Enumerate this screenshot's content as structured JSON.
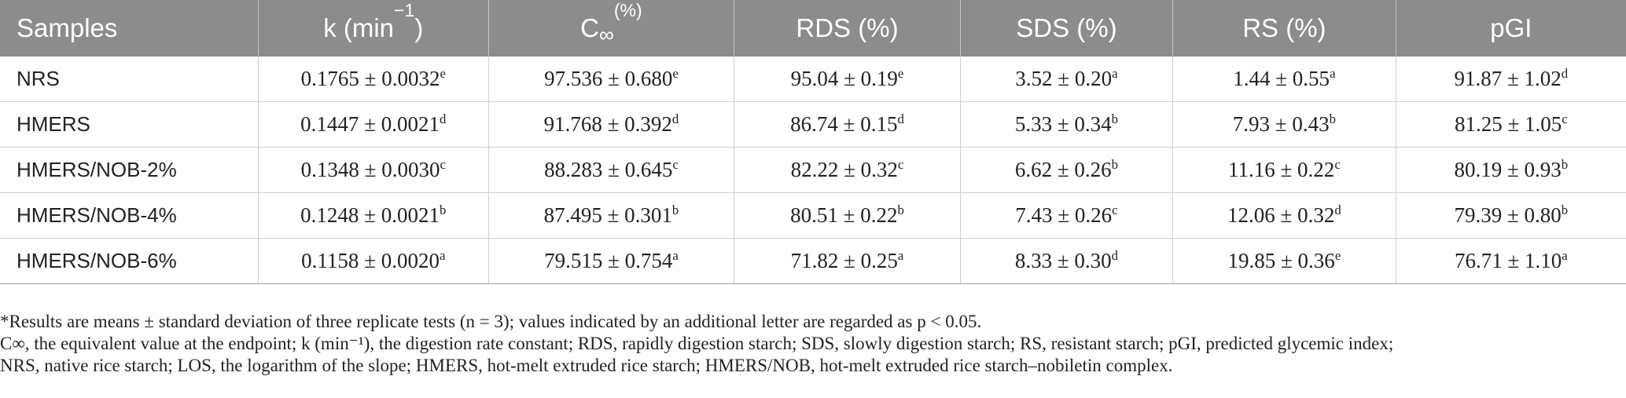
{
  "headers": [
    {
      "main": "Samples"
    },
    {
      "main": "k (min",
      "sup": "−1",
      "tail": ")"
    },
    {
      "main": "C",
      "sub": "∞",
      "sup": "(%)"
    },
    {
      "main": "RDS (%)"
    },
    {
      "main": "SDS (%)"
    },
    {
      "main": "RS (%)"
    },
    {
      "main": "pGI"
    }
  ],
  "rows": [
    {
      "sample": "NRS",
      "cells": [
        {
          "v": "0.1765 ± 0.0032",
          "s": "e"
        },
        {
          "v": "97.536 ± 0.680",
          "s": "e"
        },
        {
          "v": "95.04 ± 0.19",
          "s": "e"
        },
        {
          "v": "3.52 ± 0.20",
          "s": "a"
        },
        {
          "v": "1.44 ± 0.55",
          "s": "a"
        },
        {
          "v": "91.87 ± 1.02",
          "s": "d"
        }
      ]
    },
    {
      "sample": "HMERS",
      "cells": [
        {
          "v": "0.1447 ± 0.0021",
          "s": "d"
        },
        {
          "v": "91.768 ± 0.392",
          "s": "d"
        },
        {
          "v": "86.74 ± 0.15",
          "s": "d"
        },
        {
          "v": "5.33 ± 0.34",
          "s": "b"
        },
        {
          "v": "7.93 ± 0.43",
          "s": "b"
        },
        {
          "v": "81.25 ± 1.05",
          "s": "c"
        }
      ]
    },
    {
      "sample": "HMERS/NOB-2%",
      "cells": [
        {
          "v": "0.1348 ± 0.0030",
          "s": "c"
        },
        {
          "v": "88.283 ± 0.645",
          "s": "c"
        },
        {
          "v": "82.22 ± 0.32",
          "s": "c"
        },
        {
          "v": "6.62 ± 0.26",
          "s": "b"
        },
        {
          "v": "11.16 ± 0.22",
          "s": "c"
        },
        {
          "v": "80.19 ± 0.93",
          "s": "b"
        }
      ]
    },
    {
      "sample": "HMERS/NOB-4%",
      "cells": [
        {
          "v": "0.1248 ± 0.0021",
          "s": "b"
        },
        {
          "v": "87.495 ± 0.301",
          "s": "b"
        },
        {
          "v": "80.51 ± 0.22",
          "s": "b"
        },
        {
          "v": "7.43 ± 0.26",
          "s": "c"
        },
        {
          "v": "12.06 ± 0.32",
          "s": "d"
        },
        {
          "v": "79.39 ± 0.80",
          "s": "b"
        }
      ]
    },
    {
      "sample": "HMERS/NOB-6%",
      "cells": [
        {
          "v": "0.1158 ± 0.0020",
          "s": "a"
        },
        {
          "v": "79.515 ± 0.754",
          "s": "a"
        },
        {
          "v": "71.82 ± 0.25",
          "s": "a"
        },
        {
          "v": "8.33 ± 0.30",
          "s": "d"
        },
        {
          "v": "19.85 ± 0.36",
          "s": "e"
        },
        {
          "v": "76.71 ± 1.10",
          "s": "a"
        }
      ]
    }
  ],
  "footnotes": {
    "note1": "*Results are means ± standard deviation of three replicate tests (n = 3); values indicated by an additional letter are regarded as p < 0.05.",
    "note2": "C∞, the equivalent value at the endpoint; k (min⁻¹), the digestion rate constant; RDS, rapidly digestion starch; SDS, slowly digestion starch; RS, resistant starch; pGI, predicted glycemic index;",
    "note3": "NRS, native rice starch; LOS, the logarithm of the slope; HMERS, hot-melt extruded rice starch; HMERS/NOB, hot-melt extruded rice starch–nobiletin complex."
  },
  "colors": {
    "header_bg": "#8c8c8c",
    "header_text": "#ffffff",
    "rule": "#cfcfcf"
  }
}
